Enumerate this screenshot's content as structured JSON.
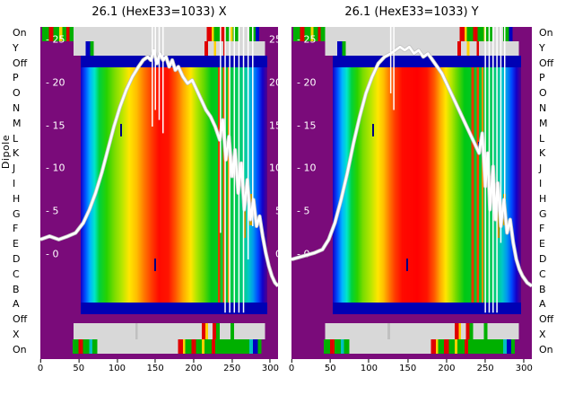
{
  "figure": {
    "axis_title": "Dipole",
    "left_labels": [
      "On",
      "Y",
      "Off",
      "P",
      "O",
      "N",
      "M",
      "L",
      "K",
      "J",
      "I",
      "H",
      "G",
      "F",
      "E",
      "D",
      "C",
      "B",
      "A",
      "Off",
      "X",
      "On"
    ],
    "right_labels": [
      "On",
      "Y",
      "Off",
      "P",
      "O",
      "N",
      "M",
      "L",
      "K",
      "J",
      "I",
      "H",
      "G",
      "F",
      "E",
      "D",
      "C",
      "B",
      "A",
      "Off",
      "X",
      "On"
    ]
  },
  "panels": [
    {
      "title": "26.1 (HexE33=1033) X",
      "x_ticks": [
        0,
        50,
        100,
        150,
        200,
        250,
        300
      ],
      "y_tick_prefix": "- ",
      "y_ticks": [
        25,
        20,
        15,
        10,
        5,
        0
      ],
      "right_y_ticks": [
        25,
        20,
        15,
        10,
        5,
        0
      ]
    },
    {
      "title": "26.1 (HexE33=1033) Y",
      "x_ticks": [
        0,
        50,
        100,
        150,
        200,
        250,
        300
      ],
      "y_tick_prefix": "- ",
      "y_ticks": [
        25,
        20,
        15,
        10,
        5,
        0
      ],
      "right_y_ticks": []
    }
  ],
  "chart_data": {
    "type": "heatmap",
    "colormap": "jet",
    "x_range": [
      0,
      310
    ],
    "y_scale_ticks": [
      25,
      20,
      15,
      10,
      5,
      0
    ],
    "colors": {
      "background_purple": "#7a0b7a",
      "band_gray": "#d8d8d8",
      "band_blue": "#0000b4",
      "hot_red": "#ff0a00",
      "curve_white": "#ffffff"
    },
    "panels": [
      {
        "name": "X",
        "overlay_curve": [
          [
            0,
            64
          ],
          [
            12,
            63
          ],
          [
            24,
            64
          ],
          [
            36,
            63
          ],
          [
            46,
            62
          ],
          [
            56,
            59
          ],
          [
            64,
            55
          ],
          [
            72,
            50
          ],
          [
            80,
            44
          ],
          [
            88,
            37
          ],
          [
            96,
            30
          ],
          [
            104,
            24
          ],
          [
            112,
            19
          ],
          [
            120,
            15
          ],
          [
            128,
            12
          ],
          [
            134,
            10
          ],
          [
            140,
            9
          ],
          [
            144,
            10
          ],
          [
            148,
            7
          ],
          [
            152,
            11
          ],
          [
            156,
            8
          ],
          [
            160,
            10
          ],
          [
            164,
            9
          ],
          [
            168,
            12
          ],
          [
            172,
            10
          ],
          [
            176,
            13
          ],
          [
            180,
            12
          ],
          [
            186,
            15
          ],
          [
            192,
            17
          ],
          [
            198,
            16
          ],
          [
            204,
            19
          ],
          [
            210,
            22
          ],
          [
            216,
            25
          ],
          [
            222,
            27
          ],
          [
            228,
            30
          ],
          [
            234,
            34
          ],
          [
            238,
            28
          ],
          [
            242,
            40
          ],
          [
            246,
            33
          ],
          [
            250,
            45
          ],
          [
            254,
            37
          ],
          [
            258,
            50
          ],
          [
            262,
            41
          ],
          [
            266,
            55
          ],
          [
            270,
            46
          ],
          [
            274,
            58
          ],
          [
            278,
            52
          ],
          [
            282,
            60
          ],
          [
            286,
            57
          ],
          [
            290,
            63
          ],
          [
            294,
            68
          ],
          [
            298,
            72
          ],
          [
            302,
            75
          ],
          [
            306,
            77
          ],
          [
            310,
            78
          ]
        ],
        "spikes": [
          [
            146,
            0,
            30
          ],
          [
            150,
            0,
            25
          ],
          [
            155,
            0,
            28
          ],
          [
            160,
            0,
            32
          ],
          [
            235,
            0,
            62
          ],
          [
            241,
            0,
            86
          ],
          [
            247,
            0,
            86
          ],
          [
            253,
            0,
            86
          ],
          [
            259,
            0,
            86
          ],
          [
            265,
            0,
            86
          ],
          [
            271,
            0,
            70
          ],
          [
            277,
            0,
            60
          ]
        ]
      },
      {
        "name": "Y",
        "overlay_curve": [
          [
            0,
            70
          ],
          [
            15,
            69
          ],
          [
            30,
            68
          ],
          [
            40,
            67
          ],
          [
            48,
            64
          ],
          [
            56,
            59
          ],
          [
            64,
            52
          ],
          [
            72,
            44
          ],
          [
            80,
            35
          ],
          [
            88,
            27
          ],
          [
            96,
            20
          ],
          [
            104,
            15
          ],
          [
            112,
            11
          ],
          [
            120,
            9
          ],
          [
            128,
            8
          ],
          [
            134,
            7
          ],
          [
            140,
            6
          ],
          [
            146,
            7
          ],
          [
            152,
            6
          ],
          [
            158,
            8
          ],
          [
            164,
            7
          ],
          [
            170,
            9
          ],
          [
            176,
            8
          ],
          [
            182,
            10
          ],
          [
            188,
            12
          ],
          [
            194,
            14
          ],
          [
            200,
            17
          ],
          [
            206,
            20
          ],
          [
            212,
            23
          ],
          [
            218,
            26
          ],
          [
            224,
            29
          ],
          [
            230,
            32
          ],
          [
            236,
            35
          ],
          [
            242,
            38
          ],
          [
            246,
            32
          ],
          [
            250,
            48
          ],
          [
            253,
            38
          ],
          [
            256,
            55
          ],
          [
            260,
            42
          ],
          [
            263,
            58
          ],
          [
            266,
            47
          ],
          [
            270,
            60
          ],
          [
            274,
            52
          ],
          [
            278,
            62
          ],
          [
            282,
            58
          ],
          [
            286,
            65
          ],
          [
            290,
            70
          ],
          [
            294,
            73
          ],
          [
            298,
            75
          ],
          [
            304,
            77
          ],
          [
            310,
            78
          ]
        ],
        "spikes": [
          [
            128,
            0,
            20
          ],
          [
            132,
            0,
            25
          ],
          [
            250,
            0,
            86
          ],
          [
            255,
            0,
            86
          ],
          [
            260,
            0,
            86
          ],
          [
            265,
            0,
            86
          ],
          [
            270,
            0,
            65
          ],
          [
            275,
            0,
            55
          ]
        ]
      }
    ]
  }
}
